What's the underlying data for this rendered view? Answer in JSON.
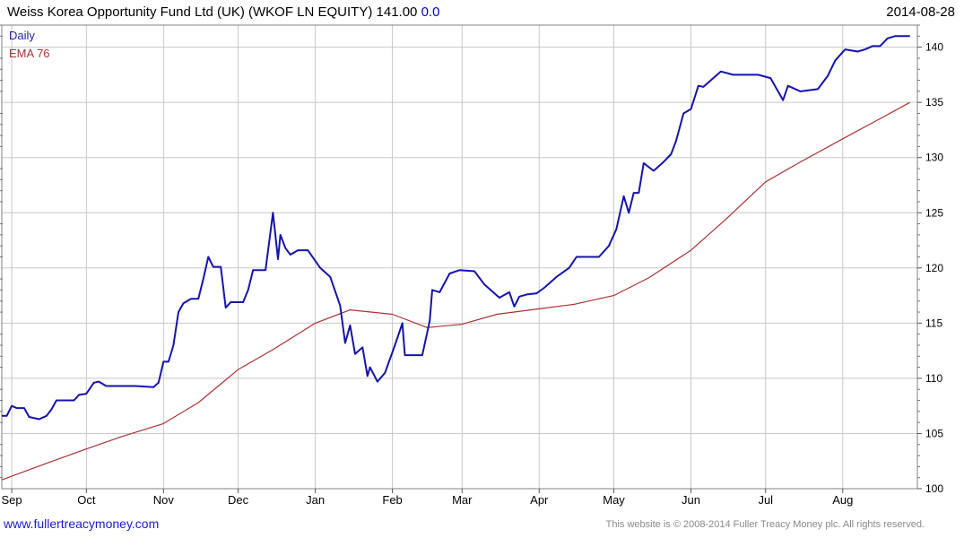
{
  "header": {
    "title": "Weiss Korea Opportunity Fund Ltd (UK) (WKOF LN EQUITY) 141.00",
    "change": "0.0",
    "date": "2014-08-28"
  },
  "footer": {
    "url": "www.fullertreacymoney.com",
    "copyright": "This website is © 2008-2014 Fuller Treacy Money plc. All rights reserved."
  },
  "colors": {
    "daily": "#1414a8",
    "ema": "#a83232",
    "grid": "#c8c8c8",
    "frame": "#808080"
  },
  "chart_data": {
    "type": "line",
    "title": "Weiss Korea Opportunity Fund Ltd (UK) (WKOF LN EQUITY) 141.00",
    "ylim": [
      100,
      142
    ],
    "y_ticks": [
      100,
      105,
      110,
      115,
      120,
      125,
      130,
      135,
      140
    ],
    "x_range": [
      "2013-08-28",
      "2014-08-31"
    ],
    "x_ticks": [
      {
        "label": "Sep",
        "date": "2013-09-01"
      },
      {
        "label": "Oct",
        "date": "2013-10-01"
      },
      {
        "label": "Nov",
        "date": "2013-11-01"
      },
      {
        "label": "Dec",
        "date": "2013-12-01"
      },
      {
        "label": "Jan",
        "date": "2014-01-01"
      },
      {
        "label": "Feb",
        "date": "2014-02-01"
      },
      {
        "label": "Mar",
        "date": "2014-03-01"
      },
      {
        "label": "Apr",
        "date": "2014-04-01"
      },
      {
        "label": "May",
        "date": "2014-05-01"
      },
      {
        "label": "Jun",
        "date": "2014-06-01"
      },
      {
        "label": "Jul",
        "date": "2014-07-01"
      },
      {
        "label": "Aug",
        "date": "2014-08-01"
      }
    ],
    "legend": "top-left",
    "grid": true,
    "series": [
      {
        "name": "Daily",
        "points": [
          [
            "2013-08-28",
            106.6
          ],
          [
            "2013-08-30",
            106.6
          ],
          [
            "2013-09-01",
            107.5
          ],
          [
            "2013-09-03",
            107.3
          ],
          [
            "2013-09-06",
            107.3
          ],
          [
            "2013-09-08",
            106.5
          ],
          [
            "2013-09-12",
            106.3
          ],
          [
            "2013-09-15",
            106.6
          ],
          [
            "2013-09-17",
            107.2
          ],
          [
            "2013-09-19",
            108.0
          ],
          [
            "2013-09-26",
            108.0
          ],
          [
            "2013-09-28",
            108.5
          ],
          [
            "2013-10-01",
            108.6
          ],
          [
            "2013-10-04",
            109.6
          ],
          [
            "2013-10-06",
            109.7
          ],
          [
            "2013-10-09",
            109.3
          ],
          [
            "2013-10-21",
            109.3
          ],
          [
            "2013-10-28",
            109.2
          ],
          [
            "2013-10-30",
            109.6
          ],
          [
            "2013-11-01",
            111.5
          ],
          [
            "2013-11-03",
            111.5
          ],
          [
            "2013-11-05",
            113.0
          ],
          [
            "2013-11-07",
            116.0
          ],
          [
            "2013-11-09",
            116.8
          ],
          [
            "2013-11-12",
            117.2
          ],
          [
            "2013-11-15",
            117.2
          ],
          [
            "2013-11-17",
            119.0
          ],
          [
            "2013-11-19",
            121.0
          ],
          [
            "2013-11-21",
            120.1
          ],
          [
            "2013-11-24",
            120.1
          ],
          [
            "2013-11-26",
            116.4
          ],
          [
            "2013-11-28",
            116.9
          ],
          [
            "2013-12-03",
            116.9
          ],
          [
            "2013-12-05",
            118.0
          ],
          [
            "2013-12-07",
            119.8
          ],
          [
            "2013-12-12",
            119.8
          ],
          [
            "2013-12-15",
            125.0
          ],
          [
            "2013-12-17",
            120.8
          ],
          [
            "2013-12-18",
            123.0
          ],
          [
            "2013-12-20",
            121.8
          ],
          [
            "2013-12-22",
            121.2
          ],
          [
            "2013-12-25",
            121.6
          ],
          [
            "2013-12-29",
            121.6
          ],
          [
            "2014-01-03",
            120.0
          ],
          [
            "2014-01-07",
            119.2
          ],
          [
            "2014-01-11",
            116.6
          ],
          [
            "2014-01-13",
            113.2
          ],
          [
            "2014-01-15",
            114.8
          ],
          [
            "2014-01-17",
            112.2
          ],
          [
            "2014-01-20",
            112.8
          ],
          [
            "2014-01-22",
            110.2
          ],
          [
            "2014-01-23",
            111.0
          ],
          [
            "2014-01-26",
            109.7
          ],
          [
            "2014-01-29",
            110.5
          ],
          [
            "2014-02-02",
            113.0
          ],
          [
            "2014-02-05",
            115.0
          ],
          [
            "2014-02-06",
            112.1
          ],
          [
            "2014-02-13",
            112.1
          ],
          [
            "2014-02-16",
            115.2
          ],
          [
            "2014-02-17",
            118.0
          ],
          [
            "2014-02-20",
            117.8
          ],
          [
            "2014-02-24",
            119.5
          ],
          [
            "2014-02-28",
            119.8
          ],
          [
            "2014-03-06",
            119.7
          ],
          [
            "2014-03-10",
            118.5
          ],
          [
            "2014-03-16",
            117.3
          ],
          [
            "2014-03-20",
            117.8
          ],
          [
            "2014-03-22",
            116.5
          ],
          [
            "2014-03-24",
            117.4
          ],
          [
            "2014-03-27",
            117.6
          ],
          [
            "2014-03-31",
            117.7
          ],
          [
            "2014-04-03",
            118.2
          ],
          [
            "2014-04-08",
            119.2
          ],
          [
            "2014-04-13",
            120.0
          ],
          [
            "2014-04-16",
            121.0
          ],
          [
            "2014-04-25",
            121.0
          ],
          [
            "2014-04-29",
            122.0
          ],
          [
            "2014-05-02",
            123.5
          ],
          [
            "2014-05-05",
            126.5
          ],
          [
            "2014-05-07",
            125.0
          ],
          [
            "2014-05-09",
            126.8
          ],
          [
            "2014-05-11",
            126.8
          ],
          [
            "2014-05-13",
            129.5
          ],
          [
            "2014-05-17",
            128.8
          ],
          [
            "2014-05-21",
            129.6
          ],
          [
            "2014-05-24",
            130.3
          ],
          [
            "2014-05-26",
            131.5
          ],
          [
            "2014-05-29",
            134.0
          ],
          [
            "2014-06-01",
            134.4
          ],
          [
            "2014-06-04",
            136.5
          ],
          [
            "2014-06-06",
            136.4
          ],
          [
            "2014-06-09",
            137.0
          ],
          [
            "2014-06-13",
            137.8
          ],
          [
            "2014-06-18",
            137.5
          ],
          [
            "2014-06-23",
            137.5
          ],
          [
            "2014-06-28",
            137.5
          ],
          [
            "2014-07-03",
            137.2
          ],
          [
            "2014-07-08",
            135.2
          ],
          [
            "2014-07-10",
            136.5
          ],
          [
            "2014-07-15",
            136.0
          ],
          [
            "2014-07-22",
            136.2
          ],
          [
            "2014-07-26",
            137.4
          ],
          [
            "2014-07-29",
            138.8
          ],
          [
            "2014-08-02",
            139.8
          ],
          [
            "2014-08-07",
            139.6
          ],
          [
            "2014-08-10",
            139.8
          ],
          [
            "2014-08-13",
            140.1
          ],
          [
            "2014-08-16",
            140.1
          ],
          [
            "2014-08-19",
            140.8
          ],
          [
            "2014-08-22",
            141.0
          ],
          [
            "2014-08-28",
            141.0
          ]
        ]
      },
      {
        "name": "EMA 76",
        "points": [
          [
            "2013-08-28",
            100.8
          ],
          [
            "2013-09-15",
            102.3
          ],
          [
            "2013-10-01",
            103.6
          ],
          [
            "2013-10-15",
            104.7
          ],
          [
            "2013-11-01",
            105.9
          ],
          [
            "2013-11-15",
            107.8
          ],
          [
            "2013-12-01",
            110.8
          ],
          [
            "2013-12-15",
            112.6
          ],
          [
            "2014-01-01",
            115.0
          ],
          [
            "2014-01-15",
            116.2
          ],
          [
            "2014-02-01",
            115.8
          ],
          [
            "2014-02-15",
            114.6
          ],
          [
            "2014-03-01",
            114.9
          ],
          [
            "2014-03-15",
            115.8
          ],
          [
            "2014-04-01",
            116.3
          ],
          [
            "2014-04-15",
            116.7
          ],
          [
            "2014-05-01",
            117.5
          ],
          [
            "2014-05-15",
            119.1
          ],
          [
            "2014-06-01",
            121.6
          ],
          [
            "2014-06-15",
            124.4
          ],
          [
            "2014-07-01",
            127.8
          ],
          [
            "2014-07-15",
            129.6
          ],
          [
            "2014-08-01",
            131.7
          ],
          [
            "2014-08-15",
            133.4
          ],
          [
            "2014-08-28",
            135.0
          ]
        ]
      }
    ]
  }
}
